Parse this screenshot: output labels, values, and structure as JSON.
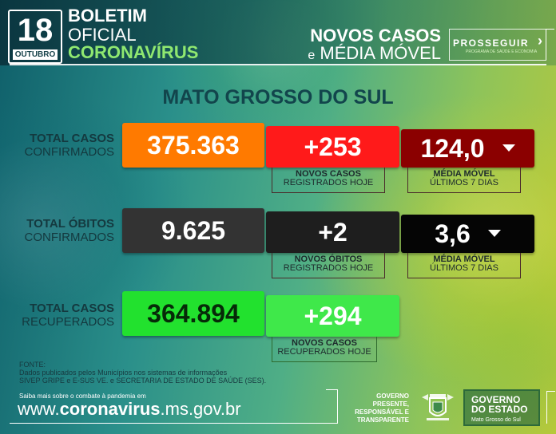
{
  "header": {
    "day": "18",
    "month": "OUTUBRO",
    "boletim_line1": "BOLETIM",
    "boletim_line2": "OFICIAL",
    "boletim_line3": "CORONAVÍRUS",
    "title_line1": "NOVOS CASOS",
    "title_conj": "e",
    "title_line2": "MÉDIA MÓVEL",
    "prosseguir": "PROSSEGUIR",
    "prosseguir_sub": "PROGRAMA DE SAÚDE E ECONOMIA"
  },
  "state": "MATO GROSSO DO SUL",
  "rows": [
    {
      "label_bold": "TOTAL CASOS",
      "label_normal": "CONFIRMADOS",
      "total": "375.363",
      "new": "+253",
      "new_label_bold": "NOVOS CASOS",
      "new_label_normal": "REGISTRADOS HOJE",
      "avg": "124,0",
      "avg_label_bold": "MÉDIA MÓVEL",
      "avg_label_normal": "ÚLTIMOS 7 DIAS",
      "trend": "down"
    },
    {
      "label_bold": "TOTAL ÓBITOS",
      "label_normal": "CONFIRMADOS",
      "total": "9.625",
      "new": "+2",
      "new_label_bold": "NOVOS ÓBITOS",
      "new_label_normal": "REGISTRADOS HOJE",
      "avg": "3,6",
      "avg_label_bold": "MÉDIA MÓVEL",
      "avg_label_normal": "ÚLTIMOS 7 DIAS",
      "trend": "down"
    },
    {
      "label_bold": "TOTAL CASOS",
      "label_normal": "RECUPERADOS",
      "total": "364.894",
      "new": "+294",
      "new_label_bold": "NOVOS CASOS",
      "new_label_normal": "RECUPERADOS HOJE"
    }
  ],
  "colors": {
    "cases_total": "#ff7a00",
    "cases_new": "#ff1a1a",
    "cases_avg": "#8b0000",
    "deaths_total": "#333333",
    "deaths_new": "#1e1e1e",
    "deaths_avg": "#050505",
    "recovered_total": "#22e12e",
    "recovered_new": "#3fe84a"
  },
  "footer": {
    "fonte_title": "FONTE:",
    "fonte_line1": "Dados publicados pelos Municípios nos sistemas de informações",
    "fonte_line2": "SIVEP GRIPE e E-SUS VE. e SECRETARIA DE ESTADO DE SAÚDE (SES).",
    "saiba": "Saiba mais sobre o combate à pandemia em",
    "site_pre": "www.",
    "site_bold": "coronavirus",
    "site_post": ".ms.gov.br",
    "tag_line1": "GOVERNO",
    "tag_line2": "PRESENTE,",
    "tag_line3": "RESPONSÁVEL E",
    "tag_line4": "TRANSPARENTE",
    "gov_line1": "GOVERNO",
    "gov_line2": "DO ESTADO",
    "gov_line3": "Mato Grosso do Sul"
  }
}
